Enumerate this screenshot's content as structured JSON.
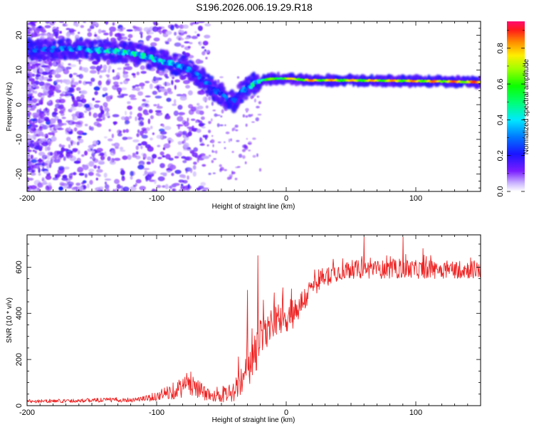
{
  "chart_data": [
    {
      "type": "heatmap",
      "title": "S196.2026.006.19.29.R18",
      "xlabel": "Height of straight line (km)",
      "ylabel": "Frequency (Hz)",
      "xlim": [
        -200,
        150
      ],
      "ylim": [
        -25,
        24
      ],
      "xticks": [
        -200,
        -100,
        0,
        100
      ],
      "yticks": [
        -20,
        -10,
        0,
        10,
        20
      ],
      "colorbar": {
        "label": "Normalized spectral amplitude",
        "range": [
          0.0,
          0.95
        ],
        "ticks": [
          "0.0",
          "0.2",
          "0.4",
          "0.6",
          "0.8"
        ]
      },
      "ridge": {
        "x": [
          -200,
          -180,
          -160,
          -140,
          -120,
          -100,
          -90,
          -80,
          -70,
          -60,
          -55,
          -50,
          -45,
          -40,
          -35,
          -30,
          -25,
          -20,
          -10,
          0,
          20,
          50,
          100,
          150
        ],
        "freq": [
          16,
          16,
          16,
          15.5,
          15,
          13,
          12,
          11,
          9,
          6,
          4,
          3,
          1.5,
          1,
          3.5,
          5,
          6,
          7,
          7.5,
          7.5,
          7,
          7,
          6.8,
          6.5
        ],
        "amplitude": [
          0.3,
          0.35,
          0.4,
          0.5,
          0.55,
          0.5,
          0.45,
          0.4,
          0.35,
          0.35,
          0.3,
          0.35,
          0.35,
          0.3,
          0.35,
          0.4,
          0.55,
          0.65,
          0.7,
          0.8,
          0.9,
          0.85,
          0.9,
          0.95
        ]
      }
    },
    {
      "type": "line",
      "xlabel": "Height of straight line (km)",
      "ylabel": "SNR (10 * v/v)",
      "xlim": [
        -200,
        150
      ],
      "ylim": [
        0,
        740
      ],
      "xticks": [
        -200,
        -100,
        0,
        100
      ],
      "yticks": [
        0,
        200,
        400,
        600
      ],
      "series": [
        {
          "name": "SNR",
          "color": "#ee2222",
          "x": [
            -200,
            -180,
            -160,
            -140,
            -120,
            -110,
            -100,
            -90,
            -80,
            -75,
            -70,
            -65,
            -60,
            -55,
            -50,
            -45,
            -40,
            -35,
            -30,
            -25,
            -22,
            -20,
            -15,
            -10,
            -5,
            0,
            5,
            10,
            15,
            20,
            25,
            30,
            40,
            50,
            60,
            80,
            100,
            120,
            150
          ],
          "y": [
            20,
            20,
            22,
            25,
            25,
            30,
            40,
            60,
            80,
            100,
            90,
            60,
            50,
            40,
            40,
            50,
            60,
            100,
            140,
            200,
            260,
            280,
            320,
            360,
            380,
            380,
            400,
            430,
            470,
            510,
            540,
            560,
            580,
            590,
            590,
            590,
            590,
            590,
            590
          ],
          "noise": [
            8,
            8,
            8,
            10,
            10,
            12,
            20,
            35,
            45,
            55,
            50,
            35,
            30,
            25,
            25,
            35,
            45,
            70,
            80,
            90,
            100,
            100,
            80,
            70,
            70,
            70,
            70,
            60,
            55,
            45,
            45,
            45,
            40,
            40,
            40,
            40,
            40,
            40,
            40
          ],
          "spikes": [
            {
              "x": -22,
              "y": 650
            },
            {
              "x": -30,
              "y": 500
            },
            {
              "x": 90,
              "y": 730
            },
            {
              "x": 60,
              "y": 730
            }
          ]
        }
      ]
    }
  ]
}
